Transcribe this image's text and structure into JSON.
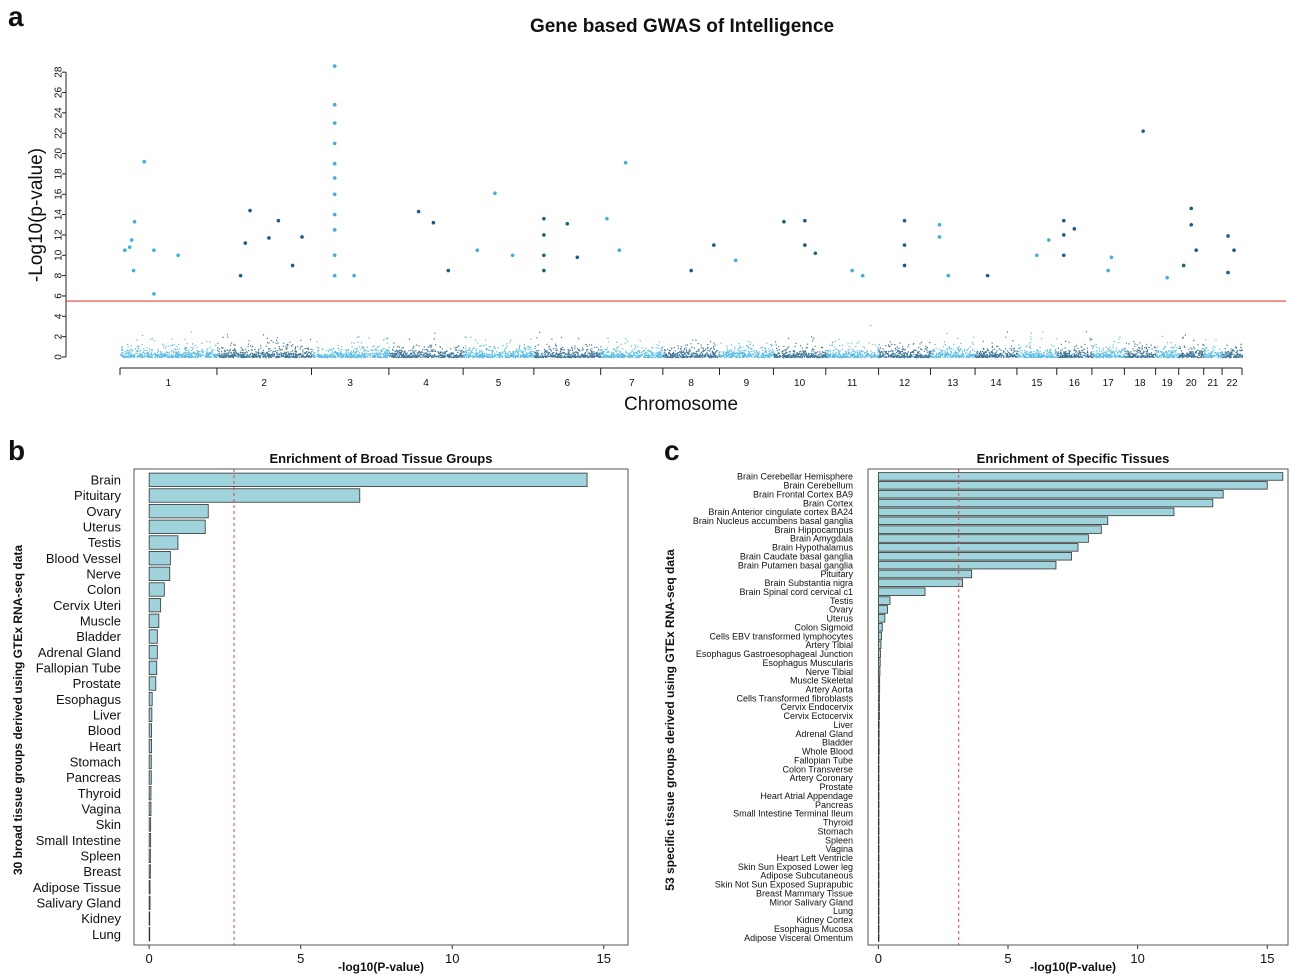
{
  "figure": {
    "panel_labels": [
      "a",
      "b",
      "c"
    ]
  },
  "colors": {
    "light_blue": "#3bb0e0",
    "dark_blue": "#1a5e86",
    "threshold_red": "#e8423a",
    "bar_fill": "#9fd4dc",
    "bar_stroke": "#333333",
    "dashed_red": "#e8423a"
  },
  "chart_data": [
    {
      "type": "scatter",
      "title": "Gene based GWAS of Intelligence",
      "xlabel": "Chromosome",
      "ylabel": "-Log10(p-value)",
      "ylim": [
        0,
        29
      ],
      "yticks": [
        0,
        2,
        4,
        6,
        8,
        10,
        12,
        14,
        16,
        18,
        20,
        22,
        24,
        26,
        28
      ],
      "threshold": 5.5,
      "chromosomes": [
        "1",
        "2",
        "3",
        "4",
        "5",
        "6",
        "7",
        "8",
        "9",
        "10",
        "11",
        "12",
        "13",
        "14",
        "15",
        "16",
        "17",
        "18",
        "19",
        "20",
        "21",
        "22"
      ],
      "chrom_widths": [
        248,
        242,
        198,
        190,
        181,
        171,
        159,
        145,
        138,
        134,
        135,
        133,
        114,
        107,
        102,
        90,
        83,
        80,
        59,
        64,
        47,
        51
      ],
      "significant_points": [
        {
          "chr": "1",
          "pos": 0.25,
          "y": 19.2
        },
        {
          "chr": "1",
          "pos": 0.15,
          "y": 13.3
        },
        {
          "chr": "1",
          "pos": 0.12,
          "y": 11.5
        },
        {
          "chr": "1",
          "pos": 0.1,
          "y": 10.8
        },
        {
          "chr": "1",
          "pos": 0.05,
          "y": 10.5
        },
        {
          "chr": "1",
          "pos": 0.14,
          "y": 8.5
        },
        {
          "chr": "1",
          "pos": 0.35,
          "y": 10.5
        },
        {
          "chr": "1",
          "pos": 0.6,
          "y": 10.0
        },
        {
          "chr": "1",
          "pos": 0.35,
          "y": 6.2
        },
        {
          "chr": "2",
          "pos": 0.35,
          "y": 14.4
        },
        {
          "chr": "2",
          "pos": 0.3,
          "y": 11.2
        },
        {
          "chr": "2",
          "pos": 0.55,
          "y": 11.7
        },
        {
          "chr": "2",
          "pos": 0.65,
          "y": 13.4
        },
        {
          "chr": "2",
          "pos": 0.25,
          "y": 8.0
        },
        {
          "chr": "2",
          "pos": 0.8,
          "y": 9.0
        },
        {
          "chr": "2",
          "pos": 0.9,
          "y": 11.8
        },
        {
          "chr": "3",
          "pos": 0.3,
          "y": 28.6
        },
        {
          "chr": "3",
          "pos": 0.3,
          "y": 24.8
        },
        {
          "chr": "3",
          "pos": 0.3,
          "y": 23.0
        },
        {
          "chr": "3",
          "pos": 0.3,
          "y": 21.0
        },
        {
          "chr": "3",
          "pos": 0.3,
          "y": 19.0
        },
        {
          "chr": "3",
          "pos": 0.3,
          "y": 17.6
        },
        {
          "chr": "3",
          "pos": 0.3,
          "y": 16.0
        },
        {
          "chr": "3",
          "pos": 0.3,
          "y": 14.0
        },
        {
          "chr": "3",
          "pos": 0.3,
          "y": 12.5
        },
        {
          "chr": "3",
          "pos": 0.3,
          "y": 10.0
        },
        {
          "chr": "3",
          "pos": 0.3,
          "y": 8.0
        },
        {
          "chr": "3",
          "pos": 0.55,
          "y": 8.0
        },
        {
          "chr": "4",
          "pos": 0.4,
          "y": 14.3
        },
        {
          "chr": "4",
          "pos": 0.6,
          "y": 13.2
        },
        {
          "chr": "4",
          "pos": 0.8,
          "y": 8.5
        },
        {
          "chr": "5",
          "pos": 0.2,
          "y": 10.5
        },
        {
          "chr": "5",
          "pos": 0.45,
          "y": 16.1
        },
        {
          "chr": "5",
          "pos": 0.7,
          "y": 10.0
        },
        {
          "chr": "6",
          "pos": 0.15,
          "y": 13.6
        },
        {
          "chr": "6",
          "pos": 0.15,
          "y": 12.0
        },
        {
          "chr": "6",
          "pos": 0.15,
          "y": 10.0
        },
        {
          "chr": "6",
          "pos": 0.15,
          "y": 8.5
        },
        {
          "chr": "6",
          "pos": 0.5,
          "y": 13.1
        },
        {
          "chr": "6",
          "pos": 0.65,
          "y": 9.8
        },
        {
          "chr": "7",
          "pos": 0.4,
          "y": 19.1
        },
        {
          "chr": "7",
          "pos": 0.1,
          "y": 13.6
        },
        {
          "chr": "7",
          "pos": 0.3,
          "y": 10.5
        },
        {
          "chr": "8",
          "pos": 0.5,
          "y": 8.5
        },
        {
          "chr": "8",
          "pos": 0.9,
          "y": 11.0
        },
        {
          "chr": "9",
          "pos": 0.3,
          "y": 9.5
        },
        {
          "chr": "10",
          "pos": 0.2,
          "y": 13.3
        },
        {
          "chr": "10",
          "pos": 0.6,
          "y": 13.4
        },
        {
          "chr": "10",
          "pos": 0.6,
          "y": 11.0
        },
        {
          "chr": "10",
          "pos": 0.8,
          "y": 10.2
        },
        {
          "chr": "11",
          "pos": 0.5,
          "y": 8.5
        },
        {
          "chr": "11",
          "pos": 0.7,
          "y": 8.0
        },
        {
          "chr": "12",
          "pos": 0.5,
          "y": 13.4
        },
        {
          "chr": "12",
          "pos": 0.5,
          "y": 11.0
        },
        {
          "chr": "12",
          "pos": 0.5,
          "y": 9.0
        },
        {
          "chr": "13",
          "pos": 0.2,
          "y": 13.0
        },
        {
          "chr": "13",
          "pos": 0.2,
          "y": 11.8
        },
        {
          "chr": "13",
          "pos": 0.4,
          "y": 8.0
        },
        {
          "chr": "14",
          "pos": 0.3,
          "y": 8.0
        },
        {
          "chr": "15",
          "pos": 0.8,
          "y": 11.5
        },
        {
          "chr": "15",
          "pos": 0.5,
          "y": 10.0
        },
        {
          "chr": "16",
          "pos": 0.2,
          "y": 13.4
        },
        {
          "chr": "16",
          "pos": 0.2,
          "y": 12.0
        },
        {
          "chr": "16",
          "pos": 0.5,
          "y": 12.6
        },
        {
          "chr": "16",
          "pos": 0.2,
          "y": 10.0
        },
        {
          "chr": "17",
          "pos": 0.6,
          "y": 9.8
        },
        {
          "chr": "17",
          "pos": 0.5,
          "y": 8.5
        },
        {
          "chr": "18",
          "pos": 0.6,
          "y": 22.2
        },
        {
          "chr": "19",
          "pos": 0.5,
          "y": 7.8
        },
        {
          "chr": "20",
          "pos": 0.5,
          "y": 14.6
        },
        {
          "chr": "20",
          "pos": 0.5,
          "y": 13.0
        },
        {
          "chr": "20",
          "pos": 0.7,
          "y": 10.5
        },
        {
          "chr": "20",
          "pos": 0.2,
          "y": 9.0
        },
        {
          "chr": "22",
          "pos": 0.3,
          "y": 11.9
        },
        {
          "chr": "22",
          "pos": 0.6,
          "y": 10.5
        },
        {
          "chr": "22",
          "pos": 0.3,
          "y": 8.3
        }
      ]
    },
    {
      "type": "bar",
      "orientation": "horizontal",
      "title": "Enrichment of Broad Tissue Groups",
      "xlabel": "-log10(P-value)",
      "ylabel": "30 broad tissue groups derived using GTEx RNA-seq data",
      "xlim": [
        -0.5,
        15.8
      ],
      "xticks": [
        0,
        5,
        10,
        15
      ],
      "threshold": 2.8,
      "categories": [
        "Brain",
        "Pituitary",
        "Ovary",
        "Uterus",
        "Testis",
        "Blood Vessel",
        "Nerve",
        "Colon",
        "Cervix Uteri",
        "Muscle",
        "Bladder",
        "Adrenal Gland",
        "Fallopian Tube",
        "Prostate",
        "Esophagus",
        "Liver",
        "Blood",
        "Heart",
        "Stomach",
        "Pancreas",
        "Thyroid",
        "Vagina",
        "Skin",
        "Small Intestine",
        "Spleen",
        "Breast",
        "Adipose Tissue",
        "Salivary Gland",
        "Kidney",
        "Lung"
      ],
      "values": [
        14.45,
        6.95,
        1.95,
        1.85,
        0.95,
        0.7,
        0.68,
        0.5,
        0.38,
        0.32,
        0.27,
        0.27,
        0.25,
        0.22,
        0.1,
        0.09,
        0.08,
        0.08,
        0.07,
        0.07,
        0.06,
        0.06,
        0.05,
        0.05,
        0.04,
        0.04,
        0.03,
        0.03,
        0.02,
        0.02
      ]
    },
    {
      "type": "bar",
      "orientation": "horizontal",
      "title": "Enrichment of Specific Tissues",
      "xlabel": "-log10(P-value)",
      "ylabel": "53 specific tissue groups derived using GTEx RNA-seq data",
      "xlim": [
        -0.4,
        15.8
      ],
      "xticks": [
        0,
        5,
        10,
        15
      ],
      "threshold": 3.1,
      "categories": [
        "Brain Cerebellar Hemisphere",
        "Brain Cerebellum",
        "Brain Frontal Cortex BA9",
        "Brain Cortex",
        "Brain Anterior cingulate cortex BA24",
        "Brain Nucleus accumbens basal ganglia",
        "Brain Hippocampus",
        "Brain Amygdala",
        "Brain Hypothalamus",
        "Brain Caudate basal ganglia",
        "Brain Putamen basal ganglia",
        "Pituitary",
        "Brain Substantia nigra",
        "Brain Spinal cord cervical c1",
        "Testis",
        "Ovary",
        "Uterus",
        "Colon Sigmoid",
        "Cells EBV transformed lymphocytes",
        "Artery Tibial",
        "Esophagus Gastroesophageal Junction",
        "Esophagus Muscularis",
        "Nerve Tibial",
        "Muscle Skeletal",
        "Artery Aorta",
        "Cells Transformed fibroblasts",
        "Cervix Endocervix",
        "Cervix Ectocervix",
        "Liver",
        "Adrenal Gland",
        "Bladder",
        "Whole Blood",
        "Fallopian Tube",
        "Colon Transverse",
        "Artery Coronary",
        "Prostate",
        "Heart Atrial Appendage",
        "Pancreas",
        "Small Intestine Terminal Ileum",
        "Thyroid",
        "Stomach",
        "Spleen",
        "Vagina",
        "Heart Left Ventricle",
        "Skin Sun Exposed Lower leg",
        "Adipose Subcutaneous",
        "Skin Not Sun Exposed Suprapubic",
        "Breast Mammary Tissue",
        "Minor Salivary Gland",
        "Lung",
        "Kidney Cortex",
        "Esophagus Mucosa",
        "Adipose Visceral Omentum"
      ],
      "values": [
        15.6,
        15.0,
        13.3,
        12.9,
        11.4,
        8.85,
        8.6,
        8.1,
        7.7,
        7.45,
        6.85,
        3.6,
        3.25,
        1.8,
        0.45,
        0.35,
        0.25,
        0.15,
        0.12,
        0.1,
        0.08,
        0.07,
        0.06,
        0.05,
        0.05,
        0.04,
        0.04,
        0.04,
        0.03,
        0.03,
        0.03,
        0.03,
        0.02,
        0.02,
        0.02,
        0.02,
        0.02,
        0.02,
        0.02,
        0.02,
        0.02,
        0.01,
        0.01,
        0.01,
        0.01,
        0.01,
        0.01,
        0.01,
        0.01,
        0.01,
        0.01,
        0.01,
        0.01
      ]
    }
  ]
}
